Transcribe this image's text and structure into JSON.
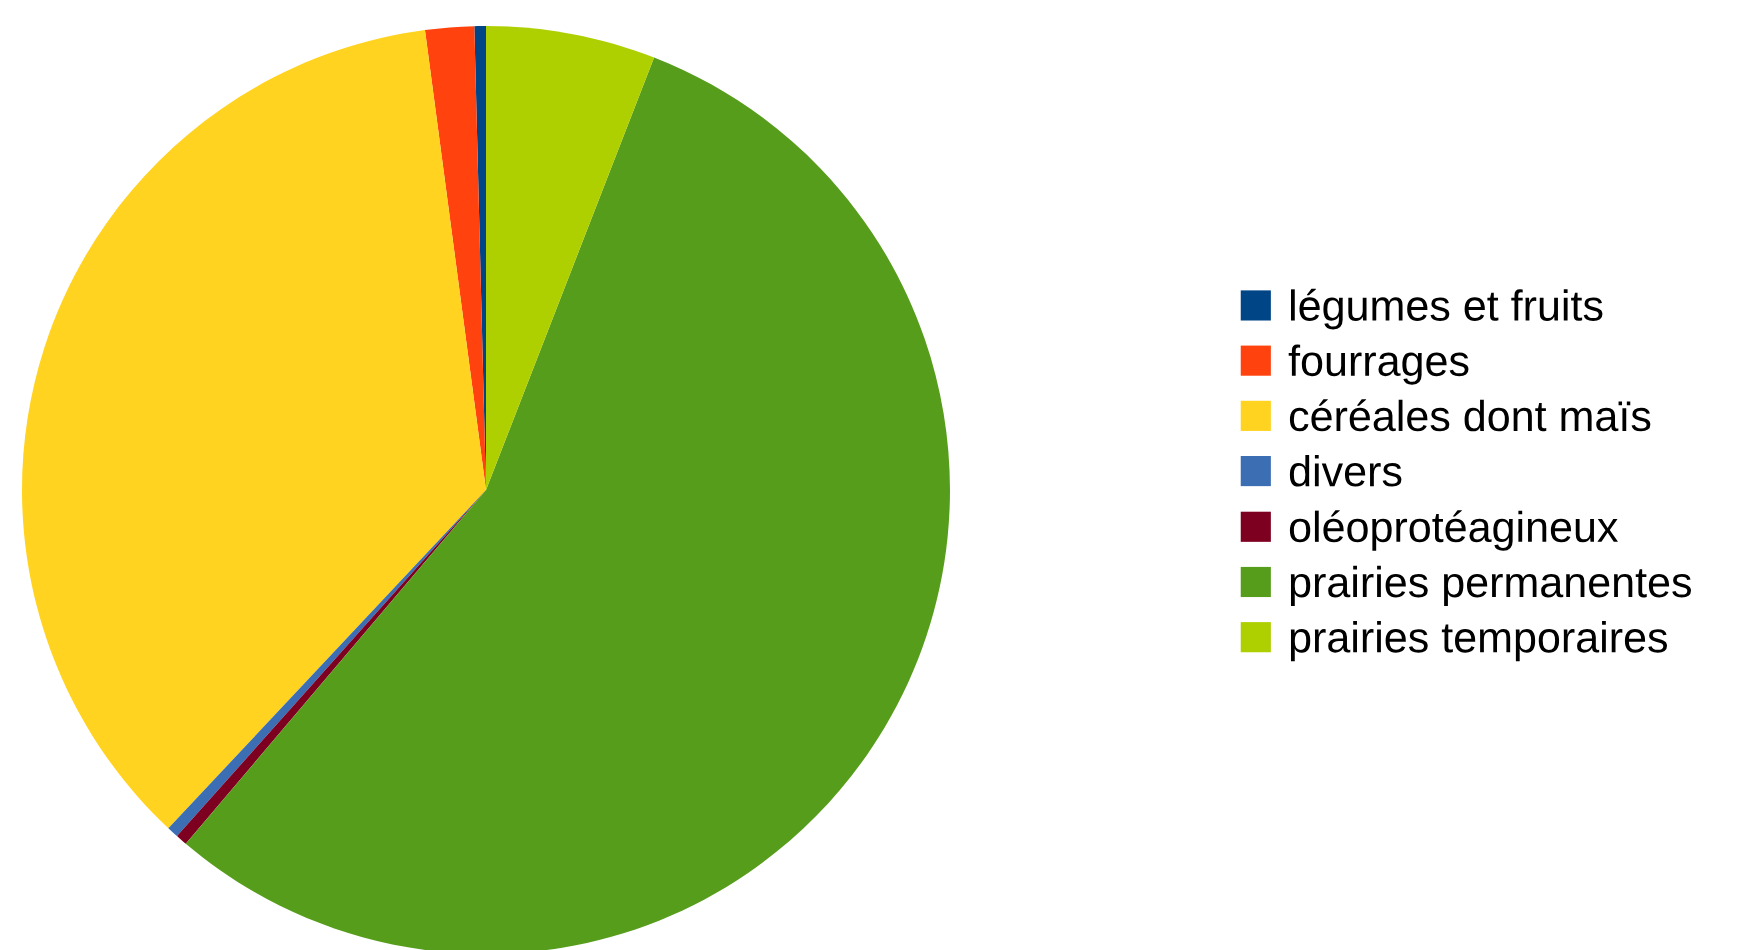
{
  "chart_data": {
    "type": "pie",
    "categories": [
      "légumes et fruits",
      "fourrages",
      "céréales dont maïs",
      "divers",
      "oléoprotéagineux",
      "prairies permanentes",
      "prairies temporaires"
    ],
    "values": [
      0.4,
      1.7,
      35.9,
      0.4,
      0.4,
      55.3,
      5.9
    ],
    "colors": [
      "#004586",
      "#ff420e",
      "#ffd320",
      "#3c6eb4",
      "#7e0021",
      "#579d1c",
      "#aecf00"
    ],
    "legend": "right"
  }
}
